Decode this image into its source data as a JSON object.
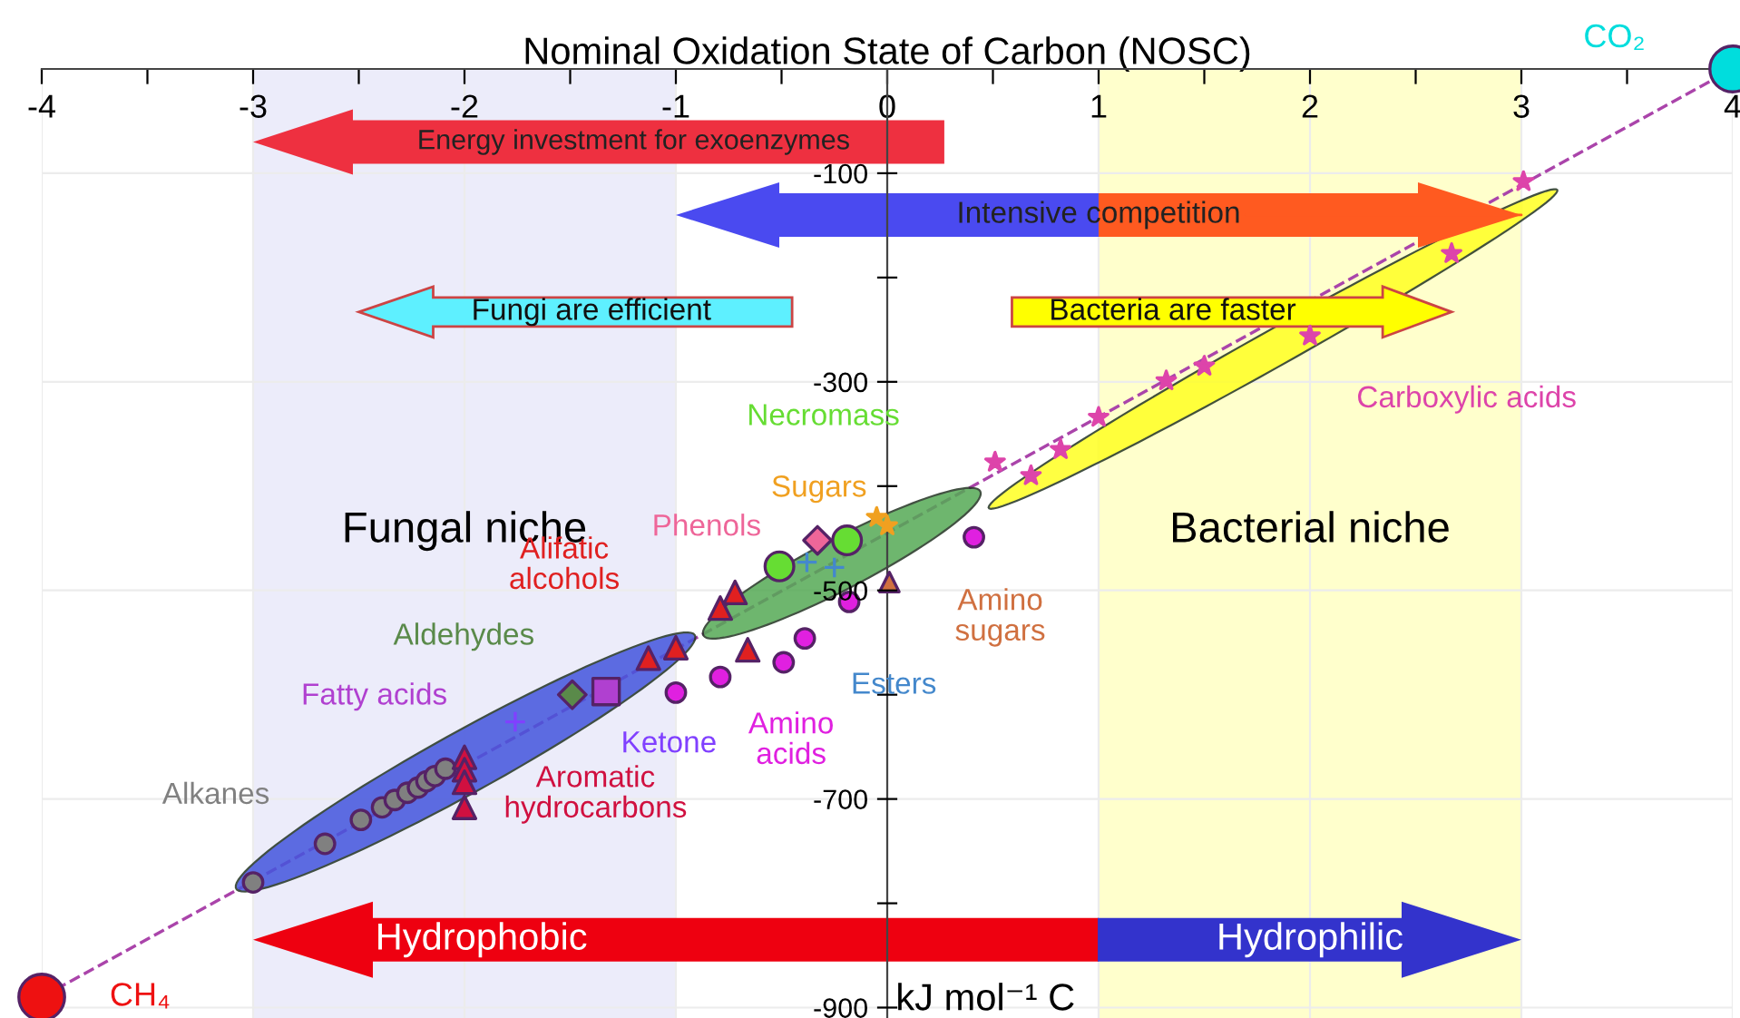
{
  "chart_data": {
    "type": "scatter",
    "xlabel": "Nominal Oxidation State of Carbon (NOSC)",
    "ylabel": "kJ mol⁻¹ C",
    "xlim": [
      -4,
      4
    ],
    "ylim": [
      -910,
      0
    ],
    "xticks": [
      -4,
      {
        "value": -3.5,
        "label": null
      },
      -3,
      {
        "value": -2.5,
        "label": null
      },
      -2,
      {
        "value": -1.5,
        "label": null
      },
      -1,
      {
        "value": -0.5,
        "label": null
      },
      0,
      {
        "value": 0.5,
        "label": null
      },
      1,
      {
        "value": 1.5,
        "label": null
      },
      2,
      {
        "value": 2.5,
        "label": null
      },
      3,
      {
        "value": 3.5,
        "label": null
      },
      4
    ],
    "yticks": [
      -100,
      {
        "value": -200,
        "label": null
      },
      -300,
      {
        "value": -400,
        "label": null
      },
      -500,
      {
        "value": -600,
        "label": null
      },
      -700,
      {
        "value": -800,
        "label": null
      },
      -900
    ],
    "grid": true,
    "bands": [
      {
        "axis": "x",
        "from": -3,
        "to": -1,
        "label": "Fungal niche",
        "color": "#ececfa"
      },
      {
        "axis": "x",
        "from": 1,
        "to": 3,
        "label": "Bacterial niche",
        "color": "#ffffcc"
      }
    ],
    "series": [
      {
        "name": "Alkanes",
        "marker": "circle",
        "color": "#808080",
        "x": [
          -3.0,
          -2.66,
          -2.49,
          -2.39,
          -2.33,
          -2.27,
          -2.22,
          -2.18,
          -2.14,
          -2.09
        ],
        "values": [
          -780,
          -743,
          -720,
          -708,
          -701,
          -694,
          -689,
          -683,
          -678,
          -671
        ]
      },
      {
        "name": "Aromatic hydrocarbons",
        "marker": "triangle",
        "color": "#d01040",
        "x": [
          -2.0,
          -2.0,
          -2.0,
          -2.0
        ],
        "values": [
          -660,
          -672,
          -684,
          -708
        ]
      },
      {
        "name": "Fatty acids",
        "marker": "square",
        "color": "#b040d0",
        "x": [
          -1.33
        ],
        "values": [
          -597
        ]
      },
      {
        "name": "Aldehydes",
        "marker": "diamond",
        "color": "#5a8a4a",
        "x": [
          -1.49
        ],
        "values": [
          -600
        ]
      },
      {
        "name": "Ketone",
        "marker": "cross",
        "color": "#8040ff",
        "x": [
          -1.76
        ],
        "values": [
          -626
        ]
      },
      {
        "name": "Alifatic alcohols",
        "marker": "triangle",
        "color": "#e02020",
        "x": [
          -1.13,
          -1.0,
          -0.79,
          -0.72,
          -0.66
        ],
        "values": [
          -565,
          -555,
          -517,
          -502,
          -557
        ]
      },
      {
        "name": "Amino acids",
        "marker": "circle",
        "color": "#e020e0",
        "x": [
          -1.0,
          -0.79,
          -0.49,
          -0.39,
          -0.18,
          0.41
        ],
        "values": [
          -598,
          -583,
          -569,
          -546,
          -511,
          -449
        ]
      },
      {
        "name": "Phenols",
        "marker": "diamond",
        "color": "#ee6699",
        "x": [
          -0.33
        ],
        "values": [
          -452
        ]
      },
      {
        "name": "Necromass",
        "marker": "circle",
        "color": "#66dd33",
        "x": [
          -0.51,
          -0.19
        ],
        "values": [
          -477,
          -452
        ]
      },
      {
        "name": "Sugars",
        "marker": "star",
        "color": "#f0a020",
        "x": [
          -0.05,
          0.0
        ],
        "values": [
          -430,
          -438
        ]
      },
      {
        "name": "Amino sugars",
        "marker": "triangle",
        "color": "#d07040",
        "x": [
          0.01
        ],
        "values": [
          -492
        ]
      },
      {
        "name": "Esters",
        "marker": "cross",
        "color": "#4488cc",
        "x": [
          -0.38,
          -0.25
        ],
        "values": [
          -473,
          -478
        ]
      },
      {
        "name": "Carboxylic acids",
        "marker": "star",
        "color": "#dd44aa",
        "x": [
          0.51,
          0.68,
          0.82,
          1.0,
          1.32,
          1.5,
          2.0,
          2.67,
          3.01
        ],
        "values": [
          -377,
          -390,
          -365,
          -334,
          -299,
          -285,
          -256,
          -177,
          -108
        ]
      },
      {
        "name": "CH₄",
        "marker": "circle",
        "color": "#ee1111",
        "x": [
          -4
        ],
        "values": [
          -890
        ]
      },
      {
        "name": "CO₂",
        "marker": "circle",
        "color": "#00dddd",
        "x": [
          4
        ],
        "values": [
          0
        ]
      },
      {
        "type": "line",
        "marker": "none",
        "line_style": "dashed",
        "color": "#aa44aa",
        "x": [
          -4,
          4
        ],
        "values": [
          -890,
          0
        ]
      }
    ],
    "annotations": [
      "Energy investment for exoenzymes",
      {
        "text": "Intensive competition",
        "x": 3.0,
        "y": -140
      },
      "Fungi are efficient",
      "Bacteria are faster",
      "Hydrophobic",
      "Hydrophilic"
    ]
  }
}
